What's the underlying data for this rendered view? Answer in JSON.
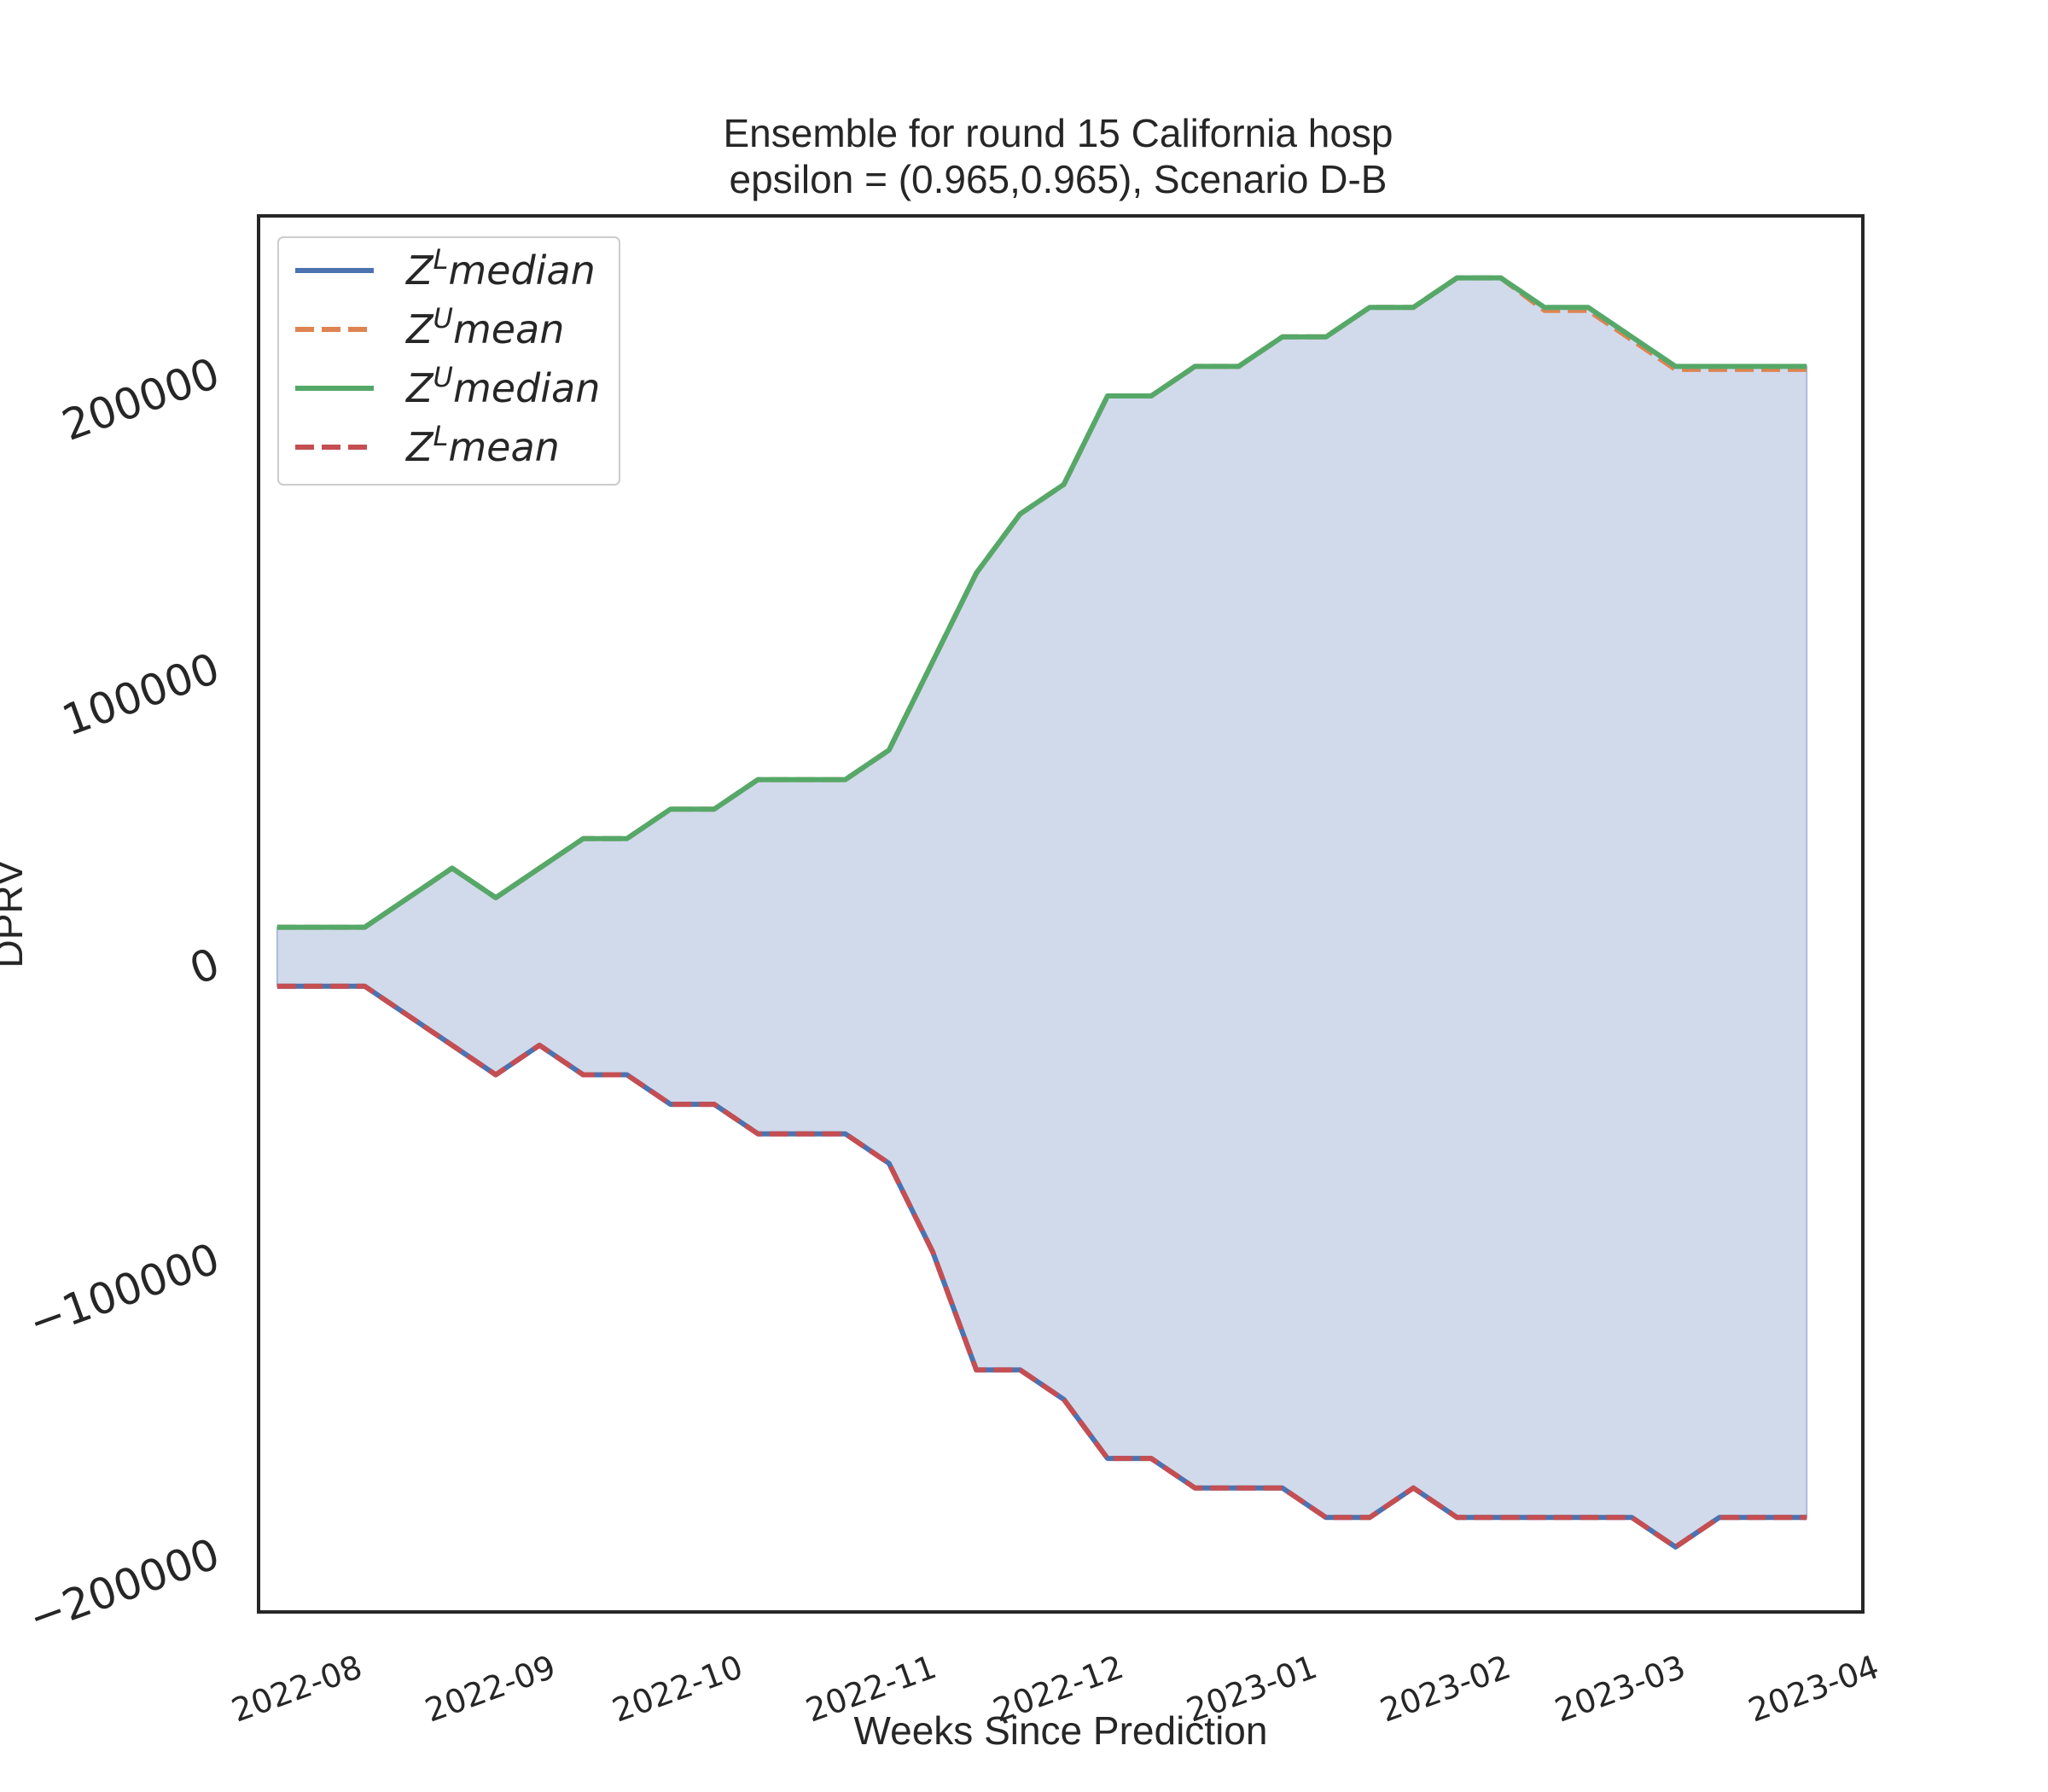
{
  "chart_data": {
    "type": "line",
    "title": "Ensemble for round 15 California  hosp",
    "subtitle": "epsilon = (0.965,0.965), Scenario D-B",
    "xlabel": "Weeks Since Prediction",
    "ylabel": "DPRV",
    "x_ticks": [
      "2022-08",
      "2022-09",
      "2022-10",
      "2022-11",
      "2022-12",
      "2023-01",
      "2023-02",
      "2023-03",
      "2023-04"
    ],
    "y_ticks": [
      "200000",
      "100000",
      "0",
      "−100000",
      "−200000"
    ],
    "y_tick_values": [
      200000,
      100000,
      0,
      -100000,
      -200000
    ],
    "xlim": [
      "2022-07-20",
      "2023-04-03"
    ],
    "ylim": [
      -220000,
      253000
    ],
    "grid": false,
    "legend_position": "top-left",
    "x": [
      "2022-07-23",
      "2022-07-30",
      "2022-08-06",
      "2022-08-13",
      "2022-08-20",
      "2022-08-27",
      "2022-09-03",
      "2022-09-10",
      "2022-09-17",
      "2022-09-24",
      "2022-10-01",
      "2022-10-08",
      "2022-10-15",
      "2022-10-22",
      "2022-10-29",
      "2022-11-05",
      "2022-11-12",
      "2022-11-19",
      "2022-11-26",
      "2022-12-03",
      "2022-12-10",
      "2022-12-17",
      "2022-12-24",
      "2022-12-31",
      "2023-01-07",
      "2023-01-14",
      "2023-01-21",
      "2023-01-28",
      "2023-02-04",
      "2023-02-11",
      "2023-02-18",
      "2023-02-25",
      "2023-03-04",
      "2023-03-11",
      "2023-03-18",
      "2023-03-25"
    ],
    "band": {
      "color": "#d1daeb",
      "lower_series": "ZL median",
      "upper_series": "ZU median"
    },
    "series": [
      {
        "name": "Z^L median",
        "legend_base": "Z",
        "legend_sup": "L",
        "legend_rest": "median",
        "color": "#4c72b0",
        "style": "solid",
        "values": [
          -8000,
          -8000,
          -8000,
          -18000,
          -28000,
          -38000,
          -28000,
          -38000,
          -38000,
          -48000,
          -48000,
          -58000,
          -58000,
          -58000,
          -68000,
          -98000,
          -138000,
          -138000,
          -148000,
          -168000,
          -168000,
          -178000,
          -178000,
          -178000,
          -188000,
          -188000,
          -178000,
          -188000,
          -188000,
          -188000,
          -188000,
          -188000,
          -198000,
          -188000,
          -188000,
          -188000
        ]
      },
      {
        "name": "Z^U mean",
        "legend_base": "Z",
        "legend_sup": "U",
        "legend_rest": "mean",
        "color": "#dd8452",
        "style": "dashed",
        "values": [
          12000,
          12000,
          12000,
          22000,
          32000,
          22000,
          32000,
          42000,
          42000,
          52000,
          52000,
          62000,
          62000,
          62000,
          72000,
          102000,
          132000,
          152000,
          162000,
          192000,
          192000,
          202000,
          202000,
          212000,
          212000,
          222000,
          222000,
          232000,
          232000,
          221000,
          221000,
          211000,
          201000,
          201000,
          201000,
          201000
        ]
      },
      {
        "name": "Z^U median",
        "legend_base": "Z",
        "legend_sup": "U",
        "legend_rest": "median",
        "color": "#55a868",
        "style": "solid",
        "values": [
          12000,
          12000,
          12000,
          22000,
          32000,
          22000,
          32000,
          42000,
          42000,
          52000,
          52000,
          62000,
          62000,
          62000,
          72000,
          102000,
          132000,
          152000,
          162000,
          192000,
          192000,
          202000,
          202000,
          212000,
          212000,
          222000,
          222000,
          232000,
          232000,
          222000,
          222000,
          212000,
          202000,
          202000,
          202000,
          202000
        ]
      },
      {
        "name": "Z^L mean",
        "legend_base": "Z",
        "legend_sup": "L",
        "legend_rest": "mean",
        "color": "#c44e52",
        "style": "dashed",
        "values": [
          -8000,
          -8000,
          -8000,
          -18000,
          -28000,
          -38000,
          -28000,
          -38000,
          -38000,
          -48000,
          -48000,
          -58000,
          -58000,
          -58000,
          -68000,
          -98000,
          -138000,
          -138000,
          -148000,
          -168000,
          -168000,
          -178000,
          -178000,
          -178000,
          -188000,
          -188000,
          -178000,
          -188000,
          -188000,
          -188000,
          -188000,
          -188000,
          -198000,
          -188000,
          -188000,
          -188000
        ]
      }
    ]
  }
}
